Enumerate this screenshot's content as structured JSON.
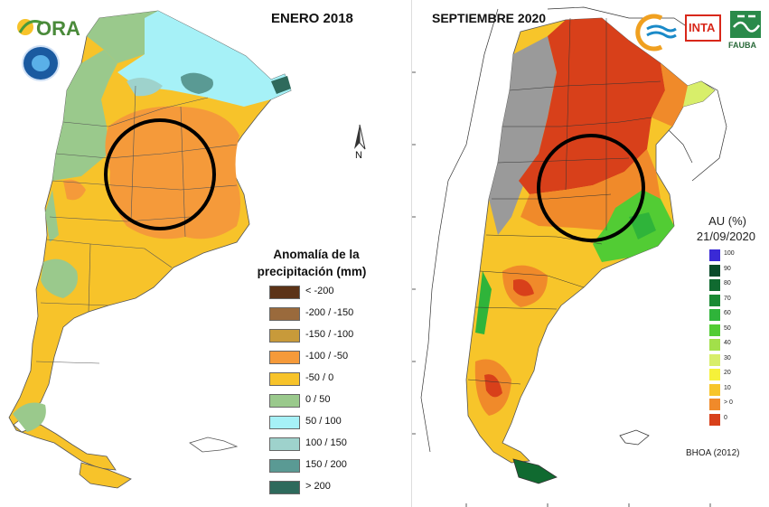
{
  "left_map": {
    "title": "ENERO 2018",
    "logo_text": "ORA",
    "north_label": "N",
    "legend_title_line1": "Anomalía de la",
    "legend_title_line2": "precipitación (mm)",
    "legend": [
      {
        "label": "< -200",
        "color": "#5c3317"
      },
      {
        "label": "-200 / -150",
        "color": "#9a6a3c"
      },
      {
        "label": "-150 / -100",
        "color": "#c89a3a"
      },
      {
        "label": "-100 / -50",
        "color": "#f59a3a"
      },
      {
        "label": "-50 / 0",
        "color": "#f7c32a"
      },
      {
        "label": "0 / 50",
        "color": "#9ac98c"
      },
      {
        "label": "50 / 100",
        "color": "#a6f1f7"
      },
      {
        "label": "100 / 150",
        "color": "#9ed2cc"
      },
      {
        "label": "150 / 200",
        "color": "#5a9a94"
      },
      {
        "label": "> 200",
        "color": "#2e6a5c"
      }
    ]
  },
  "right_map": {
    "title": "SEPTIEMBRE 2020",
    "logo_inta": "INTA",
    "logo_fauba": "FAUBA",
    "au_title_line1": "AU (%)",
    "au_title_line2": "21/09/2020",
    "source_label": "BHOA (2012)",
    "scale": [
      {
        "label": "100",
        "color": "#3a2ad6"
      },
      {
        "label": "90",
        "color": "#0a4a2a"
      },
      {
        "label": "80",
        "color": "#106a30"
      },
      {
        "label": "70",
        "color": "#1a8a34"
      },
      {
        "label": "60",
        "color": "#2fb43a"
      },
      {
        "label": "50",
        "color": "#52cc34"
      },
      {
        "label": "40",
        "color": "#a2e04a"
      },
      {
        "label": "30",
        "color": "#d8ee6a"
      },
      {
        "label": "20",
        "color": "#f6f13a"
      },
      {
        "label": "10",
        "color": "#f7c52a"
      },
      {
        "label": "> 0",
        "color": "#f08a2a"
      },
      {
        "label": "0",
        "color": "#d8401a"
      }
    ]
  }
}
